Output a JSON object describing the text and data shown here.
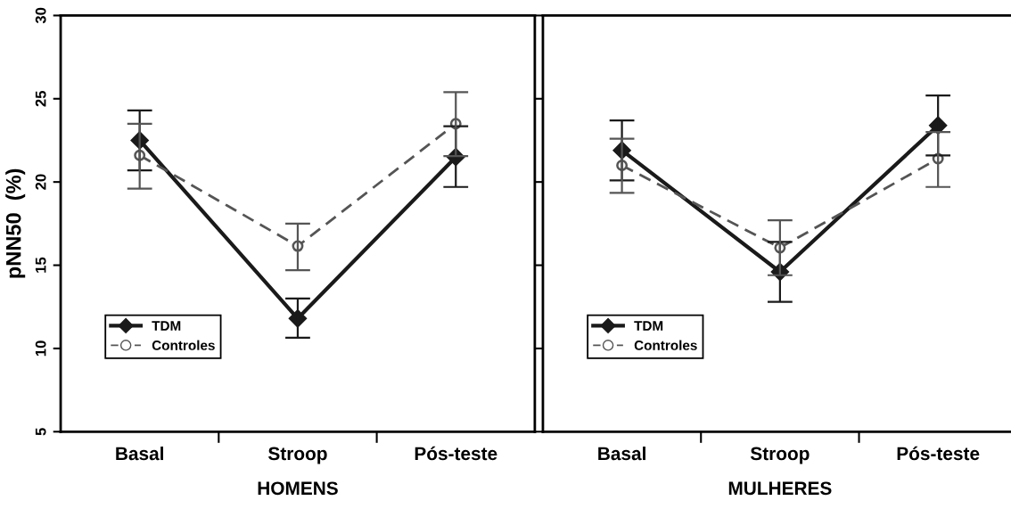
{
  "chart_data": [
    {
      "type": "line",
      "xlabel": "HOMENS",
      "ylabel": "pNN50  (%)",
      "categories": [
        "Basal",
        "Stroop",
        "Pós-teste"
      ],
      "ylim": [
        5,
        30
      ],
      "yticks": [
        5,
        10,
        15,
        20,
        25,
        30
      ],
      "grid": false,
      "legend": "bottom left",
      "series": [
        {
          "name": "TDM",
          "color": "#1a1a1a",
          "marker": "diamond",
          "line_style": "solid",
          "values": [
            22.5,
            11.8,
            21.5
          ],
          "errors": [
            [
              20.7,
              24.3
            ],
            [
              10.65,
              13.0
            ],
            [
              19.7,
              23.35
            ]
          ]
        },
        {
          "name": "Controles",
          "color": "#555555",
          "marker": "circle",
          "line_style": "dashed",
          "values": [
            21.6,
            16.15,
            23.5
          ],
          "errors": [
            [
              19.6,
              23.5
            ],
            [
              14.7,
              17.5
            ],
            [
              21.55,
              25.4
            ]
          ]
        }
      ]
    },
    {
      "type": "line",
      "xlabel": "MULHERES",
      "categories": [
        "Basal",
        "Stroop",
        "Pós-teste"
      ],
      "ylim": [
        5,
        30
      ],
      "yticks": [
        5,
        10,
        15,
        20,
        25,
        30
      ],
      "grid": false,
      "legend": "bottom left",
      "tick_labels": "x",
      "series": [
        {
          "name": "TDM",
          "color": "#1a1a1a",
          "marker": "diamond",
          "line_style": "solid",
          "values": [
            21.9,
            14.6,
            23.4
          ],
          "errors": [
            [
              20.1,
              23.7
            ],
            [
              12.8,
              16.4
            ],
            [
              21.6,
              25.2
            ]
          ]
        },
        {
          "name": "Controles",
          "color": "#555555",
          "marker": "circle",
          "line_style": "dashed",
          "values": [
            21.0,
            16.05,
            21.4
          ],
          "errors": [
            [
              19.35,
              22.6
            ],
            [
              14.4,
              17.7
            ],
            [
              19.7,
              23.0
            ]
          ]
        }
      ]
    }
  ]
}
